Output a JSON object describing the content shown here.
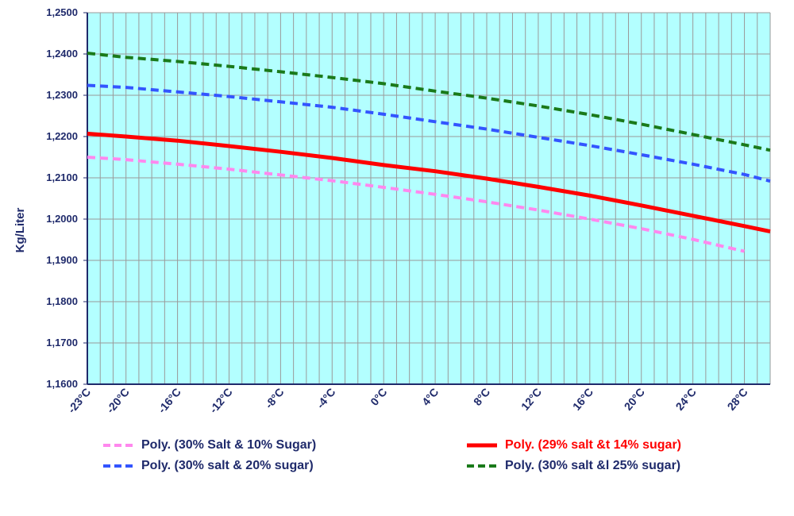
{
  "chart_data": {
    "type": "line",
    "title": "",
    "xlabel": "",
    "ylabel": "Kg/Liter",
    "ylim": [
      1.16,
      1.25
    ],
    "y_ticks": [
      "1,1600",
      "1,1700",
      "1,1800",
      "1,1900",
      "1,2000",
      "1,2100",
      "1,2200",
      "1,2300",
      "1,2400",
      "1,2500"
    ],
    "x_ticks": [
      "-23°C",
      "-20°C",
      "-16°C",
      "-12°C",
      "-8°C",
      "-4°C",
      "0°C",
      "4°C",
      "8°C",
      "12°C",
      "16°C",
      "20°C",
      "24°C",
      "28°C"
    ],
    "x_range": [
      -23,
      30
    ],
    "grid": true,
    "plot_background": "#b3ffff",
    "legend_position": "bottom",
    "series": [
      {
        "name": "Poly. (30% Salt & 10% Sugar)",
        "color": "#ff88ee",
        "dash": "dashed",
        "x": [
          -23,
          -20,
          -16,
          -12,
          -8,
          -4,
          0,
          4,
          8,
          12,
          16,
          20,
          24,
          28
        ],
        "y": [
          1.215,
          1.2144,
          1.2133,
          1.2121,
          1.2107,
          1.2093,
          1.2077,
          1.206,
          1.2042,
          1.2022,
          1.2,
          1.1977,
          1.1951,
          1.1922
        ]
      },
      {
        "name": "Poly. (29% salt &t 14% sugar)",
        "color": "#ff0000",
        "dash": "solid",
        "x": [
          -23,
          -20,
          -16,
          -12,
          -8,
          -4,
          0,
          4,
          8,
          12,
          16,
          20,
          24,
          28,
          30
        ],
        "y": [
          1.2207,
          1.22,
          1.219,
          1.2177,
          1.2163,
          1.2148,
          1.2131,
          1.2116,
          1.2098,
          1.2078,
          1.2057,
          1.2033,
          1.2008,
          1.1983,
          1.197
        ]
      },
      {
        "name": "Poly. (30% salt &  20% sugar)",
        "color": "#3355ff",
        "dash": "dashed",
        "x": [
          -23,
          -20,
          -16,
          -12,
          -8,
          -4,
          0,
          4,
          8,
          12,
          16,
          20,
          24,
          28,
          30
        ],
        "y": [
          1.2324,
          1.2319,
          1.2308,
          1.2297,
          1.2284,
          1.2271,
          1.2254,
          1.2236,
          1.2218,
          1.2198,
          1.2178,
          1.2156,
          1.2133,
          1.2108,
          1.2092
        ]
      },
      {
        "name": "Poly. (30% salt &l 25% sugar)",
        "color": "#1a7a1a",
        "dash": "dashed",
        "x": [
          -23,
          -20,
          -16,
          -12,
          -8,
          -4,
          0,
          4,
          8,
          12,
          16,
          20,
          24,
          28,
          30
        ],
        "y": [
          1.2402,
          1.2392,
          1.2382,
          1.237,
          1.2357,
          1.2343,
          1.2328,
          1.231,
          1.2293,
          1.2274,
          1.2253,
          1.223,
          1.2205,
          1.218,
          1.2167
        ]
      }
    ]
  }
}
